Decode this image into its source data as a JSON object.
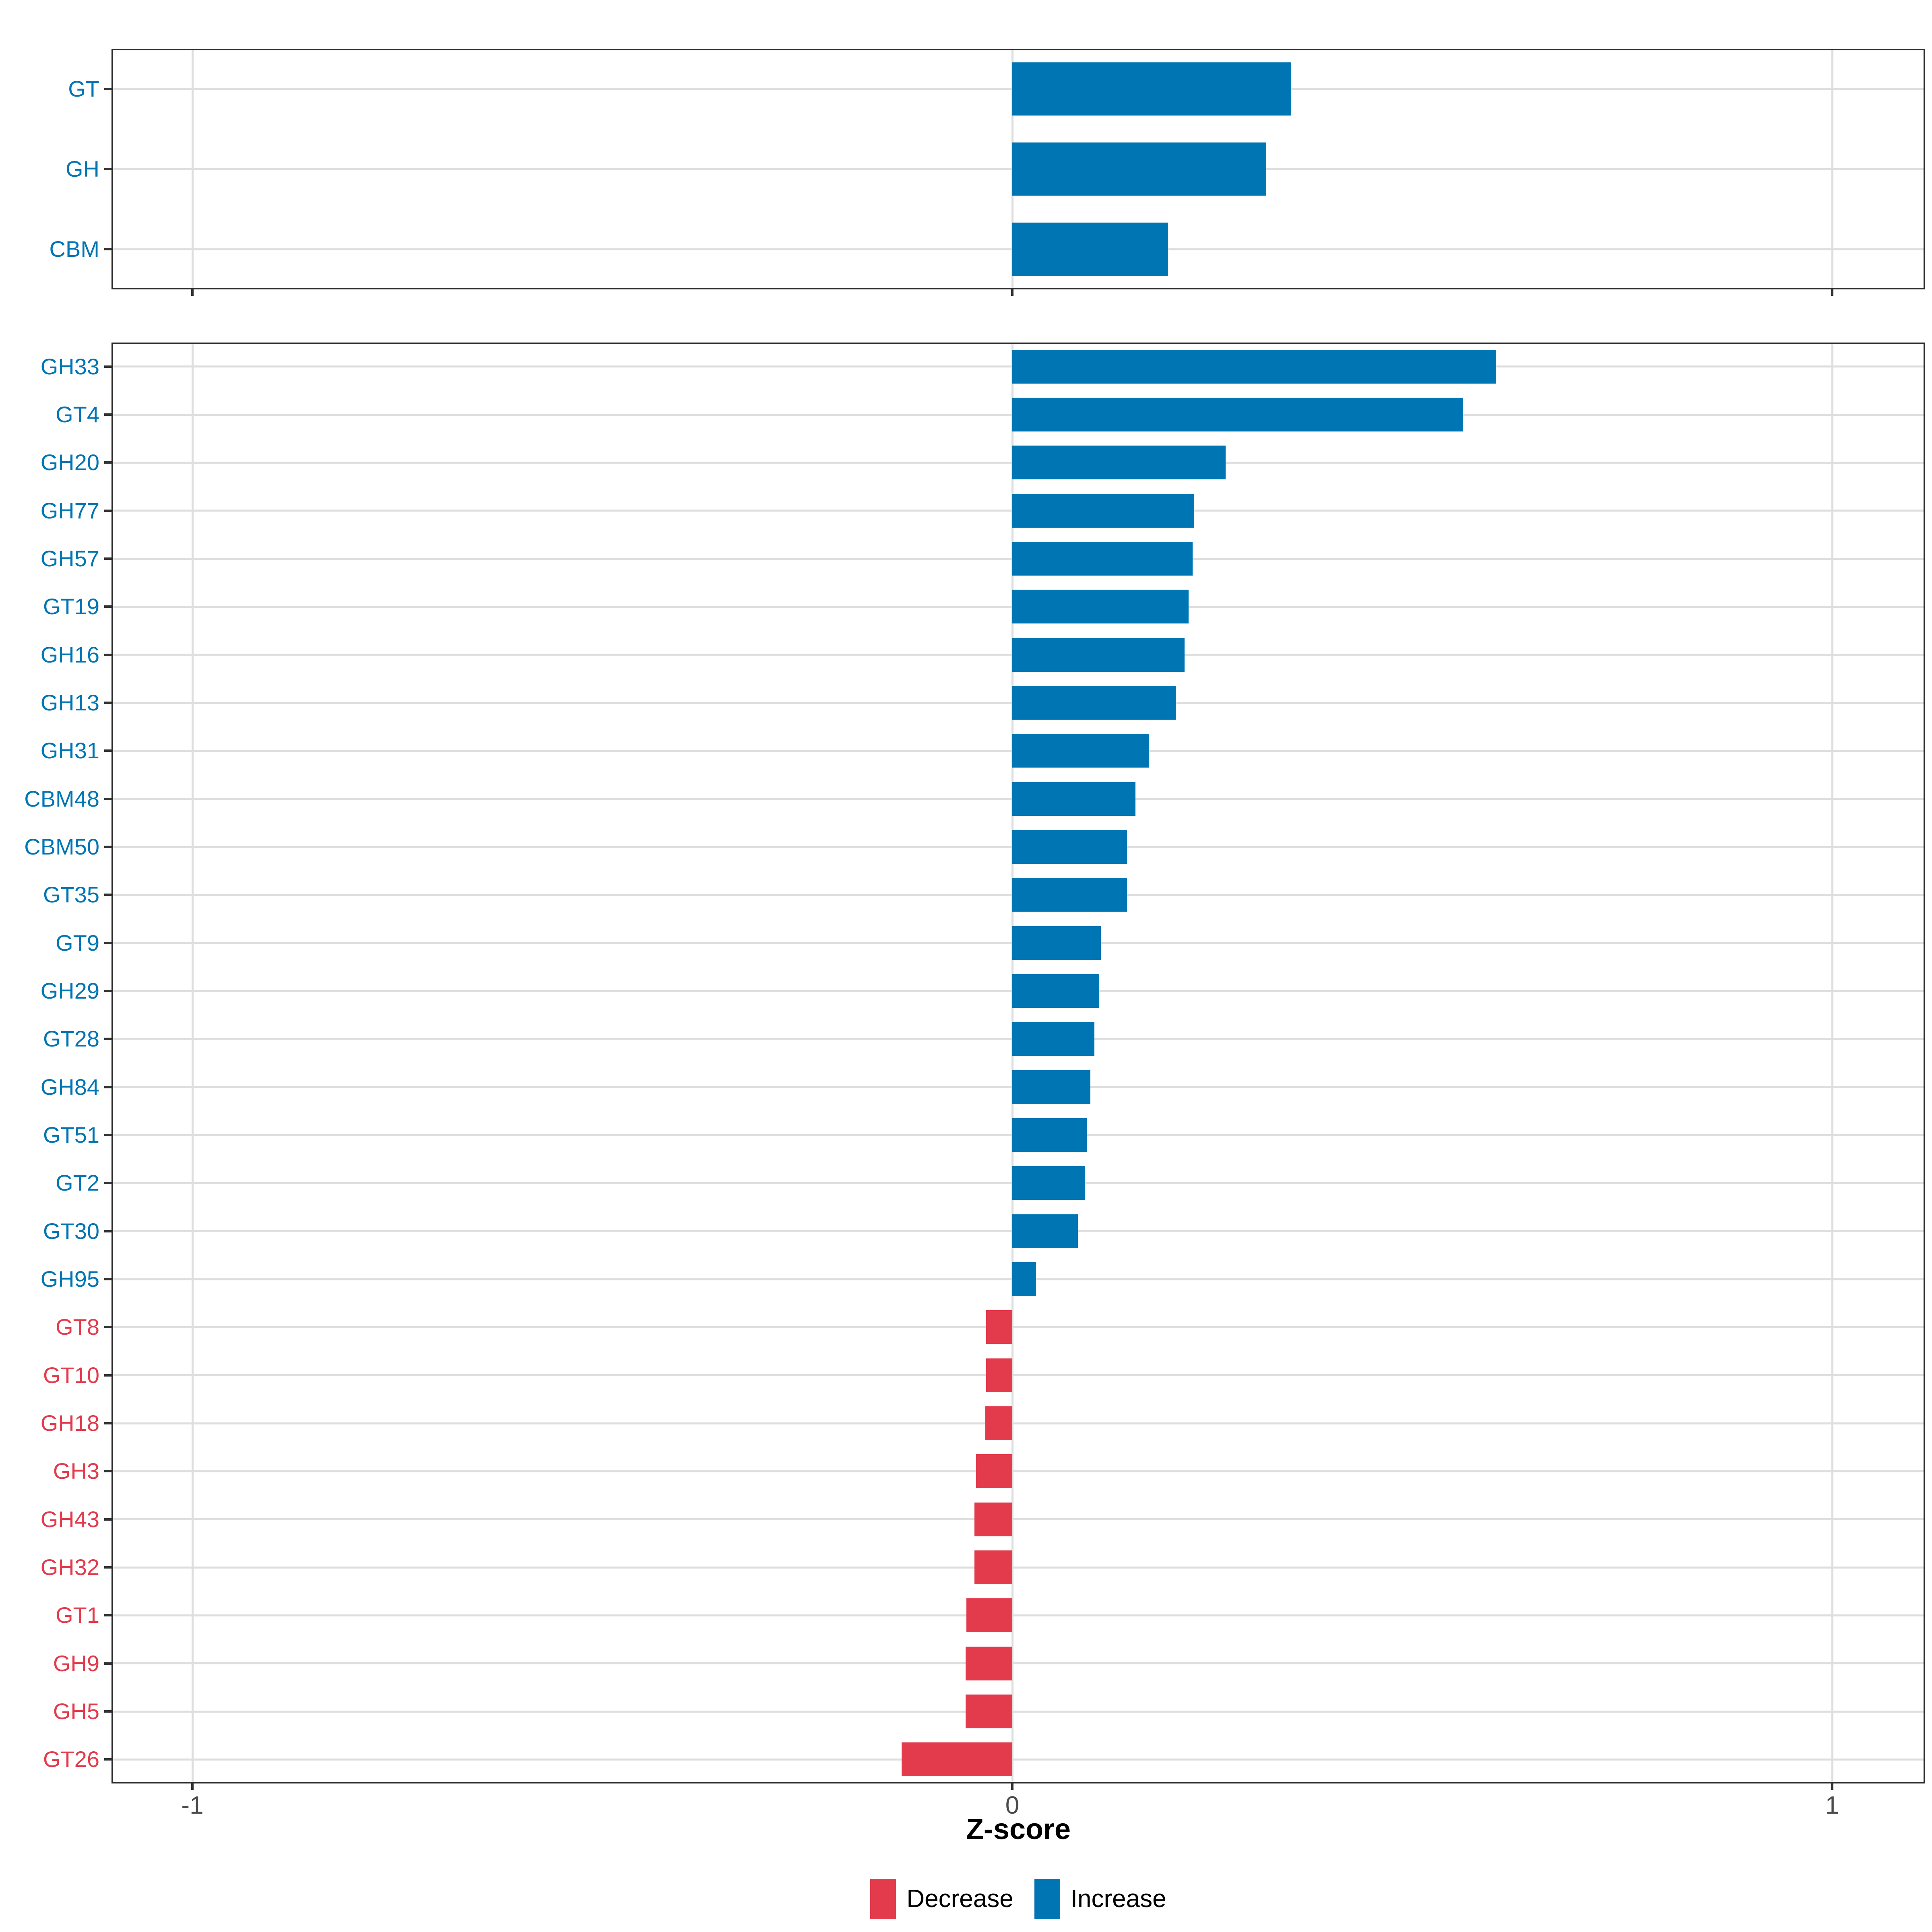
{
  "figure": {
    "axis_title": "Z-score",
    "x_ticks": [
      {
        "value": -1,
        "label": "-1"
      },
      {
        "value": 0,
        "label": "0"
      },
      {
        "value": 1,
        "label": "1"
      }
    ],
    "legend": {
      "position": "bottom",
      "items": [
        {
          "label": "Decrease",
          "type": "decrease"
        },
        {
          "label": "Increase",
          "type": "increase"
        }
      ]
    },
    "colors": {
      "increase": "#0075B4",
      "decrease": "#E33A4C",
      "grid": "#DEDEDE",
      "panel_border": "#2B2B2B",
      "axis_tick": "#333333",
      "axis_text": "#4B4B4B",
      "label_increase": "#0075B4",
      "label_decrease": "#E33A4C"
    }
  },
  "chart_data": [
    {
      "type": "bar",
      "orientation": "horizontal",
      "panel": "summary",
      "title": "",
      "xlabel": "Z-score",
      "ylabel": "",
      "xlim": [
        -1.1,
        1.11
      ],
      "grid": "major",
      "categories": [
        "GT",
        "GH",
        "CBM"
      ],
      "values": [
        0.34,
        0.31,
        0.19
      ],
      "direction": [
        "increase",
        "increase",
        "increase"
      ]
    },
    {
      "type": "bar",
      "orientation": "horizontal",
      "panel": "families",
      "title": "",
      "xlabel": "Z-score",
      "ylabel": "",
      "xlim": [
        -1.1,
        1.11
      ],
      "grid": "major",
      "categories": [
        "GH33",
        "GT4",
        "GH20",
        "GH77",
        "GH57",
        "GT19",
        "GH16",
        "GH13",
        "GH31",
        "CBM48",
        "CBM50",
        "GT35",
        "GT9",
        "GH29",
        "GT28",
        "GH84",
        "GT51",
        "GT2",
        "GT30",
        "GH95",
        "GT8",
        "GT10",
        "GH18",
        "GH3",
        "GH43",
        "GH32",
        "GT1",
        "GH9",
        "GH5",
        "GT26"
      ],
      "values": [
        0.59,
        0.55,
        0.26,
        0.222,
        0.22,
        0.215,
        0.21,
        0.2,
        0.167,
        0.15,
        0.14,
        0.14,
        0.108,
        0.106,
        0.1,
        0.095,
        0.091,
        0.089,
        0.08,
        0.029,
        -0.032,
        -0.032,
        -0.033,
        -0.044,
        -0.046,
        -0.046,
        -0.056,
        -0.057,
        -0.057,
        -0.135
      ],
      "direction": [
        "increase",
        "increase",
        "increase",
        "increase",
        "increase",
        "increase",
        "increase",
        "increase",
        "increase",
        "increase",
        "increase",
        "increase",
        "increase",
        "increase",
        "increase",
        "increase",
        "increase",
        "increase",
        "increase",
        "increase",
        "decrease",
        "decrease",
        "decrease",
        "decrease",
        "decrease",
        "decrease",
        "decrease",
        "decrease",
        "decrease",
        "decrease"
      ]
    }
  ]
}
